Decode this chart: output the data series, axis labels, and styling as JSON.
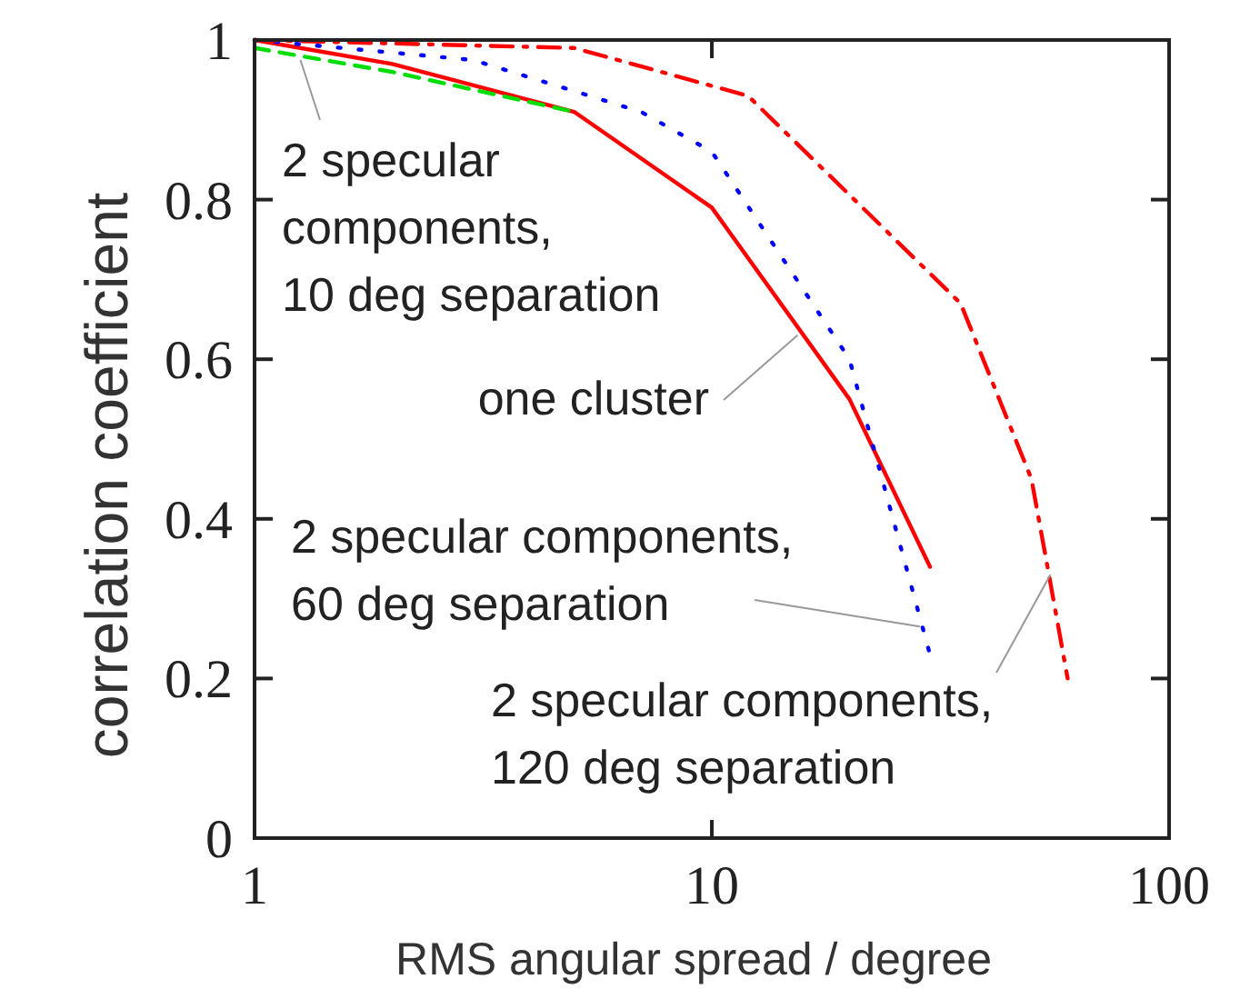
{
  "chart_data": {
    "type": "line",
    "xlabel": "RMS angular spread / degree",
    "ylabel": "correlation coefficient",
    "log": "x",
    "xlim": [
      1,
      100
    ],
    "xticks": [
      1,
      10,
      100
    ],
    "ylim": [
      0,
      1
    ],
    "yticks": [
      0,
      0.2,
      0.4,
      0.6,
      0.8,
      1
    ],
    "grid": false,
    "marker": "none",
    "series": [
      {
        "color": "#ff0000",
        "line_style": "solid",
        "x": [
          1,
          2,
          5,
          10,
          20,
          30
        ],
        "values": [
          1,
          0.97,
          0.91,
          0.79,
          0.55,
          0.34
        ]
      },
      {
        "color": "#00dd00",
        "line_style": "dashed",
        "x": [
          1,
          2,
          5
        ],
        "values": [
          0.99,
          0.96,
          0.91
        ]
      },
      {
        "color": "#0000ff",
        "line_style": "dotted",
        "x": [
          1,
          3,
          5,
          7,
          10,
          20,
          30
        ],
        "values": [
          1,
          0.975,
          0.936,
          0.91,
          0.86,
          0.6,
          0.23
        ]
      },
      {
        "color": "#ff0000",
        "line_style": "dashdot",
        "x": [
          1,
          5,
          12,
          35,
          50,
          55,
          60
        ],
        "values": [
          1,
          0.99,
          0.93,
          0.67,
          0.45,
          0.32,
          0.2
        ]
      }
    ],
    "annotations": [
      {
        "text": "2 specular\ncomponents,\n10 deg separation",
        "x": 1.26,
        "y": 0.975
      },
      {
        "text": "one cluster",
        "x": 15.4,
        "y": 0.63
      },
      {
        "text": "2 specular components,\n60 deg separation",
        "x": 28.5,
        "y": 0.265
      },
      {
        "text": "2 specular components,\n120 deg separation",
        "x": 55,
        "y": 0.33
      }
    ]
  }
}
